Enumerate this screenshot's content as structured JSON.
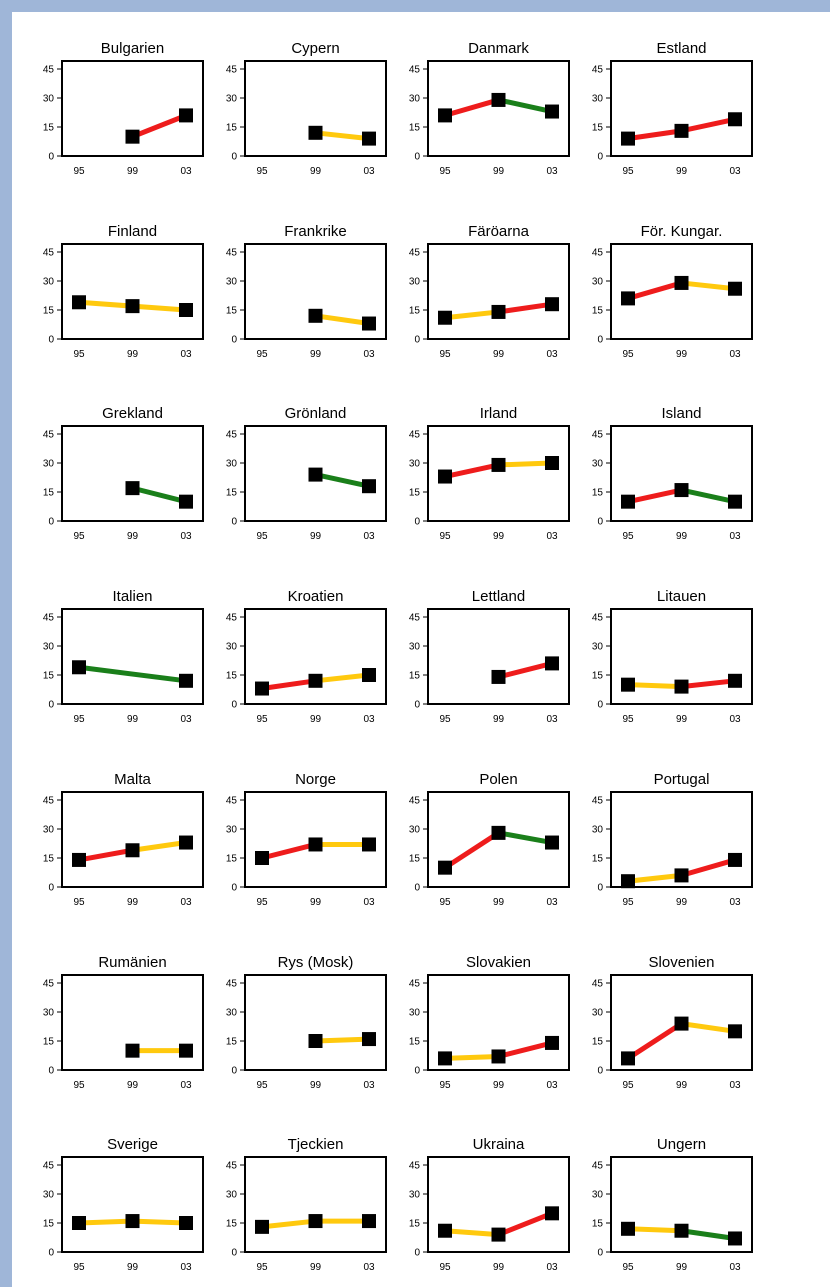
{
  "colors": {
    "background": "#9fb6d8",
    "panel": "#ffffff",
    "red": "#ee1c1c",
    "yellow": "#ffc90e",
    "green": "#1a7f1a",
    "marker": "#000000"
  },
  "chart_data": {
    "type": "line",
    "layout": "small-multiples",
    "columns": 4,
    "x_categories": [
      "95",
      "99",
      "03"
    ],
    "y_ticks": [
      "0",
      "15",
      "30",
      "45"
    ],
    "ylim": [
      0,
      45
    ],
    "segment_colors": "red = increase, yellow = little change, green = decrease",
    "panels": [
      {
        "title": "Bulgarien",
        "values": [
          null,
          10,
          21
        ],
        "segments": [
          null,
          "red"
        ]
      },
      {
        "title": "Cypern",
        "values": [
          null,
          12,
          9
        ],
        "segments": [
          null,
          "yellow"
        ]
      },
      {
        "title": "Danmark",
        "values": [
          21,
          29,
          23
        ],
        "segments": [
          "red",
          "green"
        ]
      },
      {
        "title": "Estland",
        "values": [
          9,
          13,
          19
        ],
        "segments": [
          "red",
          "red"
        ]
      },
      {
        "title": "Finland",
        "values": [
          19,
          17,
          15
        ],
        "segments": [
          "yellow",
          "yellow"
        ]
      },
      {
        "title": "Frankrike",
        "values": [
          null,
          12,
          8
        ],
        "segments": [
          null,
          "yellow"
        ]
      },
      {
        "title": "Färöarna",
        "values": [
          11,
          14,
          18
        ],
        "segments": [
          "yellow",
          "red"
        ]
      },
      {
        "title": "För. Kungar.",
        "values": [
          21,
          29,
          26
        ],
        "segments": [
          "red",
          "yellow"
        ]
      },
      {
        "title": "Grekland",
        "values": [
          null,
          17,
          10
        ],
        "segments": [
          null,
          "green"
        ]
      },
      {
        "title": "Grönland",
        "values": [
          null,
          24,
          18
        ],
        "segments": [
          null,
          "green"
        ]
      },
      {
        "title": "Irland",
        "values": [
          23,
          29,
          30
        ],
        "segments": [
          "red",
          "yellow"
        ]
      },
      {
        "title": "Island",
        "values": [
          10,
          16,
          10
        ],
        "segments": [
          "red",
          "green"
        ]
      },
      {
        "title": "Italien",
        "values": [
          19,
          null,
          12
        ],
        "segments": [
          "green",
          "green"
        ]
      },
      {
        "title": "Kroatien",
        "values": [
          8,
          12,
          15
        ],
        "segments": [
          "red",
          "yellow"
        ]
      },
      {
        "title": "Lettland",
        "values": [
          null,
          14,
          21
        ],
        "segments": [
          null,
          "red"
        ]
      },
      {
        "title": "Litauen",
        "values": [
          10,
          9,
          12
        ],
        "segments": [
          "yellow",
          "red"
        ]
      },
      {
        "title": "Malta",
        "values": [
          14,
          19,
          23
        ],
        "segments": [
          "red",
          "yellow"
        ]
      },
      {
        "title": "Norge",
        "values": [
          15,
          22,
          22
        ],
        "segments": [
          "red",
          "yellow"
        ]
      },
      {
        "title": "Polen",
        "values": [
          10,
          28,
          23
        ],
        "segments": [
          "red",
          "green"
        ]
      },
      {
        "title": "Portugal",
        "values": [
          3,
          6,
          14
        ],
        "segments": [
          "yellow",
          "red"
        ]
      },
      {
        "title": "Rumänien",
        "values": [
          null,
          10,
          10
        ],
        "segments": [
          null,
          "yellow"
        ]
      },
      {
        "title": "Rys (Mosk)",
        "values": [
          null,
          15,
          16
        ],
        "segments": [
          null,
          "yellow"
        ]
      },
      {
        "title": "Slovakien",
        "values": [
          6,
          7,
          14
        ],
        "segments": [
          "yellow",
          "red"
        ]
      },
      {
        "title": "Slovenien",
        "values": [
          6,
          24,
          20
        ],
        "segments": [
          "red",
          "yellow"
        ]
      },
      {
        "title": "Sverige",
        "values": [
          15,
          16,
          15
        ],
        "segments": [
          "yellow",
          "yellow"
        ]
      },
      {
        "title": "Tjeckien",
        "values": [
          13,
          16,
          16
        ],
        "segments": [
          "yellow",
          "yellow"
        ]
      },
      {
        "title": "Ukraina",
        "values": [
          11,
          9,
          20
        ],
        "segments": [
          "yellow",
          "red"
        ]
      },
      {
        "title": "Ungern",
        "values": [
          12,
          11,
          7
        ],
        "segments": [
          "yellow",
          "green"
        ]
      }
    ]
  }
}
